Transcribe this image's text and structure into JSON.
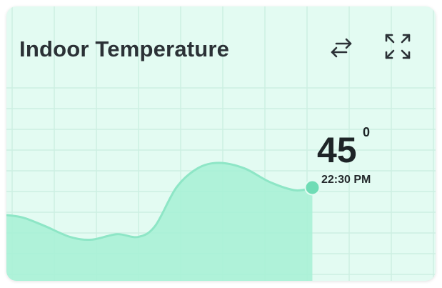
{
  "widget": {
    "title": "Indoor Temperature",
    "icons": {
      "swap": "swap-arrows-icon",
      "expand": "expand-icon"
    }
  },
  "reading": {
    "value": "45",
    "unit": "0",
    "time": "22:30 PM"
  },
  "colors": {
    "card_bg": "#e3fbf2",
    "grid": "#ccefe2",
    "area_fill": "#a9f1d6",
    "line": "#8ee6c6",
    "marker": "#6fdcb5",
    "text": "#2b3136"
  },
  "chart_data": {
    "type": "area",
    "title": "",
    "xlabel": "",
    "ylabel": "",
    "ylim": [
      0,
      100
    ],
    "grid": true,
    "series": [
      {
        "points": [
          {
            "x": 0,
            "y": 24
          },
          {
            "x": 4,
            "y": 23
          },
          {
            "x": 9,
            "y": 20
          },
          {
            "x": 15,
            "y": 16
          },
          {
            "x": 20,
            "y": 15
          },
          {
            "x": 26,
            "y": 17
          },
          {
            "x": 31,
            "y": 16
          },
          {
            "x": 35,
            "y": 20
          },
          {
            "x": 40,
            "y": 34
          },
          {
            "x": 45,
            "y": 41
          },
          {
            "x": 50,
            "y": 43
          },
          {
            "x": 56,
            "y": 41
          },
          {
            "x": 62,
            "y": 36
          },
          {
            "x": 68,
            "y": 33
          },
          {
            "x": 72,
            "y": 34
          }
        ]
      }
    ],
    "marker": {
      "x": 72,
      "y": 34
    },
    "xlim": [
      0,
      101
    ]
  }
}
